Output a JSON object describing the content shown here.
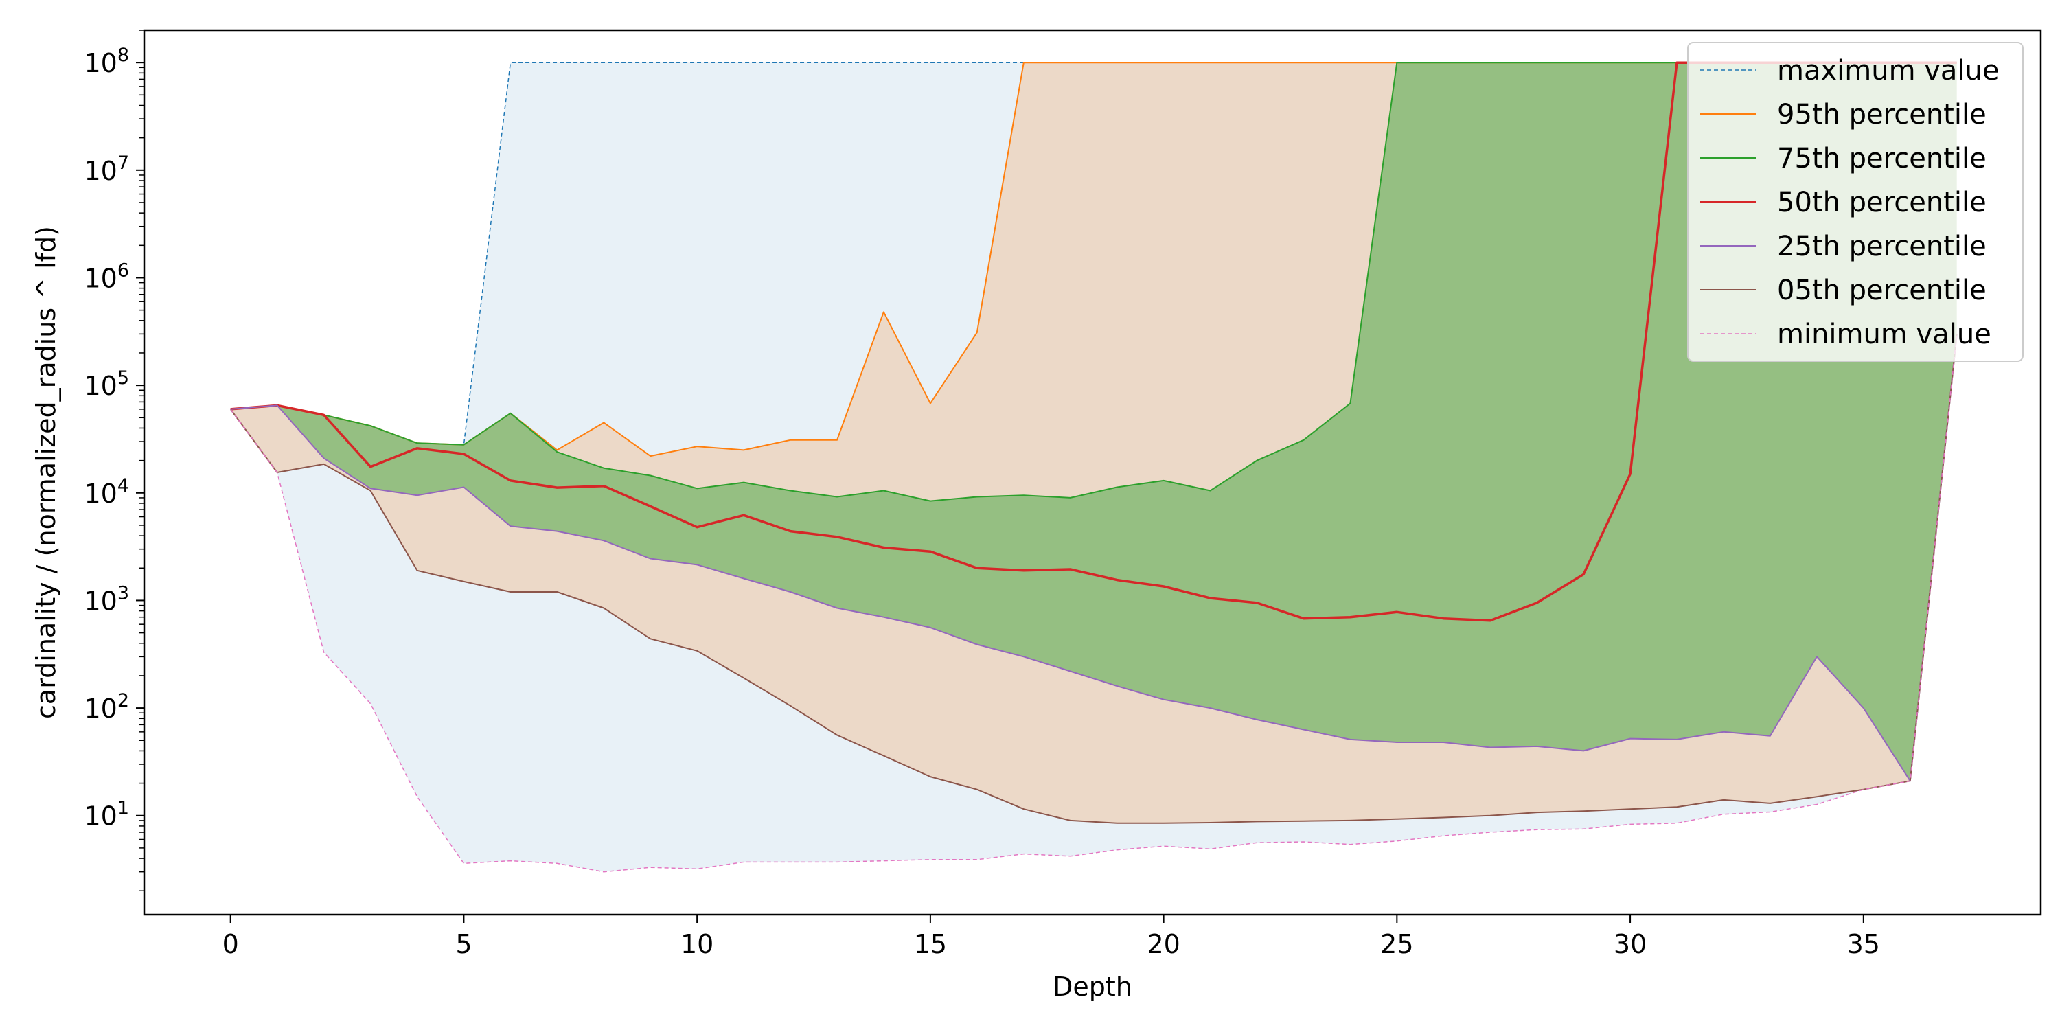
{
  "chart_data": {
    "type": "area",
    "title": "",
    "xlabel": "Depth",
    "ylabel": "cardinality / (normalized_radius ^ lfd)",
    "xlim": [
      -1.85,
      38.8
    ],
    "ylim": [
      1.2,
      200000000
    ],
    "yscale": "log",
    "grid": false,
    "legend_position": "top-right",
    "x_ticks": [
      0,
      5,
      10,
      15,
      20,
      25,
      30,
      35
    ],
    "x_tick_labels": [
      "0",
      "5",
      "10",
      "15",
      "20",
      "25",
      "30",
      "35"
    ],
    "y_ticks": [
      10,
      100,
      1000,
      10000,
      100000,
      1000000,
      10000000,
      100000000
    ],
    "y_tick_labels": [
      {
        "base": "10",
        "exp": "1"
      },
      {
        "base": "10",
        "exp": "2"
      },
      {
        "base": "10",
        "exp": "3"
      },
      {
        "base": "10",
        "exp": "4"
      },
      {
        "base": "10",
        "exp": "5"
      },
      {
        "base": "10",
        "exp": "6"
      },
      {
        "base": "10",
        "exp": "7"
      },
      {
        "base": "10",
        "exp": "8"
      }
    ],
    "x": [
      0,
      1,
      2,
      3,
      4,
      5,
      6,
      7,
      8,
      9,
      10,
      11,
      12,
      13,
      14,
      15,
      16,
      17,
      18,
      19,
      20,
      21,
      22,
      23,
      24,
      25,
      26,
      27,
      28,
      29,
      30,
      31,
      32,
      33,
      34,
      35,
      36,
      37
    ],
    "series": [
      {
        "name": "maximum value",
        "color": "#1f77b4",
        "dashed": true,
        "width": 1.5,
        "values": [
          60000,
          65000,
          53000,
          42000,
          29000,
          28000,
          100000000,
          100000000,
          100000000,
          100000000,
          100000000,
          100000000,
          100000000,
          100000000,
          100000000,
          100000000,
          100000000,
          100000000,
          100000000,
          100000000,
          100000000,
          100000000,
          100000000,
          100000000,
          100000000,
          100000000,
          100000000,
          100000000,
          100000000,
          100000000,
          100000000,
          100000000,
          100000000,
          100000000,
          100000000,
          100000000,
          100000000,
          100000000
        ]
      },
      {
        "name": "95th percentile",
        "color": "#ff7f0e",
        "dashed": false,
        "width": 2,
        "values": [
          60000,
          65000,
          53000,
          42000,
          29000,
          28000,
          55000,
          25000,
          45000,
          22000,
          27000,
          25000,
          31000,
          31000,
          480000,
          68000,
          310000,
          100000000,
          100000000,
          100000000,
          100000000,
          100000000,
          100000000,
          100000000,
          100000000,
          100000000,
          100000000,
          100000000,
          100000000,
          100000000,
          100000000,
          100000000,
          100000000,
          100000000,
          100000000,
          100000000,
          100000000,
          100000000
        ]
      },
      {
        "name": "75th percentile",
        "color": "#2ca02c",
        "dashed": false,
        "width": 2,
        "values": [
          60000,
          65000,
          53000,
          42000,
          29000,
          28000,
          55000,
          24000,
          17000,
          14500,
          11000,
          12500,
          10500,
          9200,
          10500,
          8400,
          9200,
          9500,
          9000,
          11300,
          13000,
          10500,
          20000,
          31000,
          68000,
          100000000,
          100000000,
          100000000,
          100000000,
          100000000,
          100000000,
          100000000,
          100000000,
          100000000,
          100000000,
          100000000,
          100000000,
          100000000
        ]
      },
      {
        "name": "50th percentile",
        "color": "#d62728",
        "dashed": false,
        "width": 3.5,
        "values": [
          60000,
          65000,
          53000,
          17500,
          26000,
          23000,
          13000,
          11200,
          11600,
          7500,
          4800,
          6200,
          4400,
          3900,
          3100,
          2850,
          2000,
          1900,
          1950,
          1550,
          1350,
          1050,
          950,
          680,
          700,
          780,
          680,
          650,
          950,
          1750,
          15000,
          100000000,
          100000000,
          100000000,
          100000000,
          100000000,
          100000000,
          100000000
        ]
      },
      {
        "name": "25th percentile",
        "color": "#9467bd",
        "dashed": false,
        "width": 2,
        "values": [
          60000,
          65000,
          21000,
          11000,
          9500,
          11300,
          4900,
          4400,
          3600,
          2450,
          2150,
          1600,
          1200,
          850,
          700,
          560,
          390,
          300,
          220,
          160,
          120,
          100,
          78,
          63,
          51,
          48,
          48,
          43,
          44,
          40,
          52,
          51,
          60,
          55,
          300,
          100,
          21,
          300000
        ]
      },
      {
        "name": "05th percentile",
        "color": "#8c564b",
        "dashed": false,
        "width": 2,
        "values": [
          60000,
          15500,
          18500,
          10500,
          1900,
          1500,
          1200,
          1200,
          850,
          440,
          340,
          190,
          105,
          56,
          36,
          23,
          17.5,
          11.5,
          9,
          8.5,
          8.5,
          8.6,
          8.8,
          8.9,
          9,
          9.3,
          9.6,
          10,
          10.7,
          11,
          11.5,
          12,
          14,
          13,
          15,
          17.5,
          21,
          300000
        ]
      },
      {
        "name": "minimum value",
        "color": "#e377c2",
        "dashed": true,
        "width": 1.5,
        "values": [
          60000,
          15500,
          330,
          110,
          15,
          3.6,
          3.8,
          3.6,
          3,
          3.3,
          3.2,
          3.7,
          3.7,
          3.7,
          3.8,
          3.9,
          3.9,
          4.4,
          4.2,
          4.8,
          5.2,
          4.9,
          5.6,
          5.7,
          5.4,
          5.8,
          6.5,
          7,
          7.4,
          7.5,
          8.3,
          8.5,
          10.3,
          10.8,
          12.7,
          17.5,
          21,
          300000
        ]
      }
    ],
    "fills": [
      {
        "between": [
          "minimum value",
          "maximum value"
        ],
        "color": "#1f77b4",
        "opacity": 0.1
      },
      {
        "between": [
          "05th percentile",
          "95th percentile"
        ],
        "color": "#ff7f0e",
        "opacity": 0.2
      },
      {
        "between": [
          "25th percentile",
          "75th percentile"
        ],
        "color": "#2ca02c",
        "opacity": 0.45
      }
    ]
  }
}
